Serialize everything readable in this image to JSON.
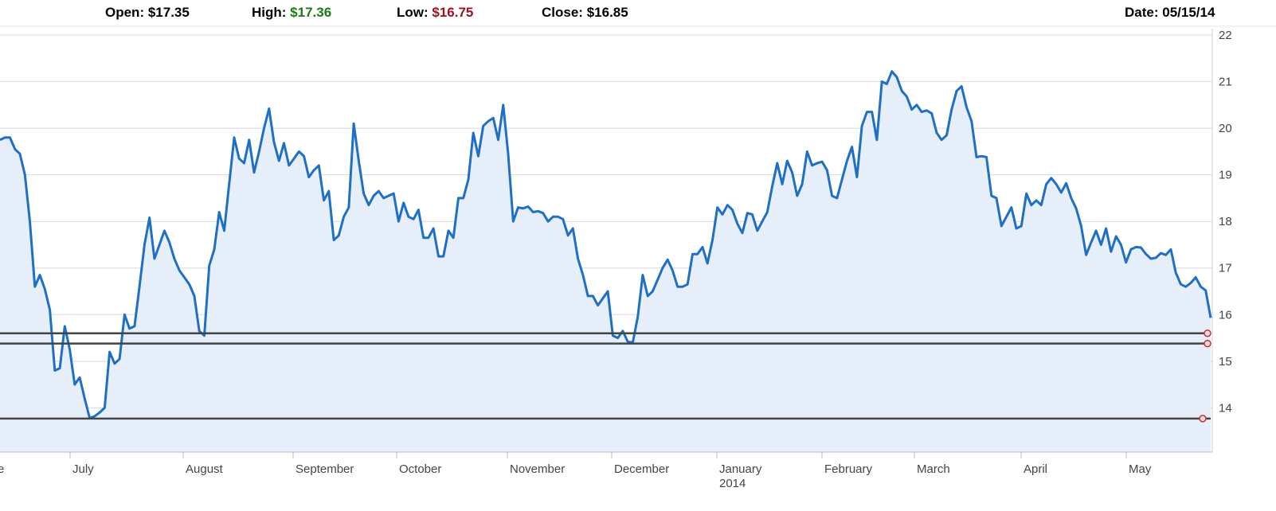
{
  "header": {
    "open_label": "Open:",
    "open_value": "$17.35",
    "high_label": "High:",
    "high_value": "$17.36",
    "low_label": "Low:",
    "low_value": "$16.75",
    "close_label": "Close:",
    "close_value": "$16.85",
    "date_label": "Date:",
    "date_value": "05/15/14"
  },
  "colors": {
    "line": "#1f6fc5",
    "area": "#e6eefa",
    "high": "#1a7a1a",
    "low": "#a01020",
    "hline": "#444444",
    "marker": "#c0303a",
    "grid": "#d8d8d8"
  },
  "chart_data": {
    "type": "area",
    "title": "",
    "xlabel": "",
    "ylabel": "",
    "ylim": [
      13.05,
      22
    ],
    "y_axis_side": "right",
    "y_ticks": [
      "14",
      "15",
      "16",
      "17",
      "18",
      "19",
      "20",
      "21",
      "22"
    ],
    "grid": true,
    "x_tick_labels": [
      {
        "label": "e",
        "sub": ""
      },
      {
        "label": "July",
        "sub": ""
      },
      {
        "label": "August",
        "sub": ""
      },
      {
        "label": "September",
        "sub": ""
      },
      {
        "label": "October",
        "sub": ""
      },
      {
        "label": "November",
        "sub": ""
      },
      {
        "label": "December",
        "sub": ""
      },
      {
        "label": "January",
        "sub": "2014"
      },
      {
        "label": "February",
        "sub": ""
      },
      {
        "label": "March",
        "sub": ""
      },
      {
        "label": "April",
        "sub": ""
      },
      {
        "label": "May",
        "sub": ""
      }
    ],
    "horizontal_lines": [
      15.6,
      15.38,
      13.77
    ],
    "series": [
      {
        "values": [
          19.75,
          19.8,
          19.8,
          19.55,
          19.45,
          19.0,
          18.0,
          16.6,
          16.85,
          16.55,
          16.1,
          14.8,
          14.85,
          15.75,
          15.25,
          14.5,
          14.65,
          14.2,
          13.78,
          13.82,
          13.9,
          14.0,
          15.2,
          14.95,
          15.05,
          16.0,
          15.7,
          15.75,
          16.6,
          17.5,
          18.08,
          17.2,
          17.5,
          17.8,
          17.55,
          17.2,
          16.95,
          16.8,
          16.65,
          16.4,
          15.65,
          15.55,
          17.05,
          17.4,
          18.2,
          17.8,
          18.8,
          19.8,
          19.35,
          19.25,
          19.75,
          19.05,
          19.5,
          20.0,
          20.42,
          19.7,
          19.3,
          19.68,
          19.2,
          19.35,
          19.5,
          19.4,
          18.95,
          19.1,
          19.2,
          18.45,
          18.65,
          17.6,
          17.7,
          18.1,
          18.3,
          20.1,
          19.3,
          18.6,
          18.35,
          18.55,
          18.65,
          18.5,
          18.55,
          18.6,
          18.0,
          18.4,
          18.1,
          18.05,
          18.25,
          17.65,
          17.65,
          17.85,
          17.25,
          17.25,
          17.8,
          17.65,
          18.5,
          18.5,
          18.9,
          19.9,
          19.4,
          20.05,
          20.15,
          20.22,
          19.75,
          20.5,
          19.45,
          18.0,
          18.3,
          18.28,
          18.32,
          18.2,
          18.22,
          18.18,
          18.0,
          18.1,
          18.1,
          18.05,
          17.7,
          17.85,
          17.2,
          16.85,
          16.4,
          16.4,
          16.2,
          16.35,
          16.5,
          15.55,
          15.5,
          15.65,
          15.42,
          15.4,
          15.95,
          16.85,
          16.4,
          16.5,
          16.75,
          17.0,
          17.18,
          16.95,
          16.6,
          16.6,
          16.65,
          17.3,
          17.3,
          17.45,
          17.1,
          17.6,
          18.3,
          18.15,
          18.35,
          18.25,
          17.95,
          17.75,
          18.18,
          18.15,
          17.8,
          18.0,
          18.2,
          18.75,
          19.25,
          18.8,
          19.3,
          19.05,
          18.55,
          18.8,
          19.5,
          19.2,
          19.25,
          19.28,
          19.1,
          18.55,
          18.5,
          18.9,
          19.3,
          19.6,
          18.95,
          20.05,
          20.35,
          20.35,
          19.75,
          21.0,
          20.95,
          21.22,
          21.1,
          20.8,
          20.68,
          20.4,
          20.5,
          20.35,
          20.38,
          20.32,
          19.9,
          19.75,
          19.85,
          20.4,
          20.8,
          20.9,
          20.45,
          20.15,
          19.38,
          19.4,
          19.38,
          18.55,
          18.5,
          17.9,
          18.1,
          18.3,
          17.85,
          17.9,
          18.6,
          18.35,
          18.45,
          18.35,
          18.8,
          18.93,
          18.8,
          18.62,
          18.82,
          18.5,
          18.28,
          17.9,
          17.28,
          17.55,
          17.8,
          17.5,
          17.85,
          17.35,
          17.68,
          17.5,
          17.12,
          17.4,
          17.45,
          17.44,
          17.3,
          17.2,
          17.22,
          17.32,
          17.28,
          17.4,
          16.9,
          16.65,
          16.6,
          16.68,
          16.8,
          16.6,
          16.52,
          15.93
        ]
      }
    ]
  }
}
